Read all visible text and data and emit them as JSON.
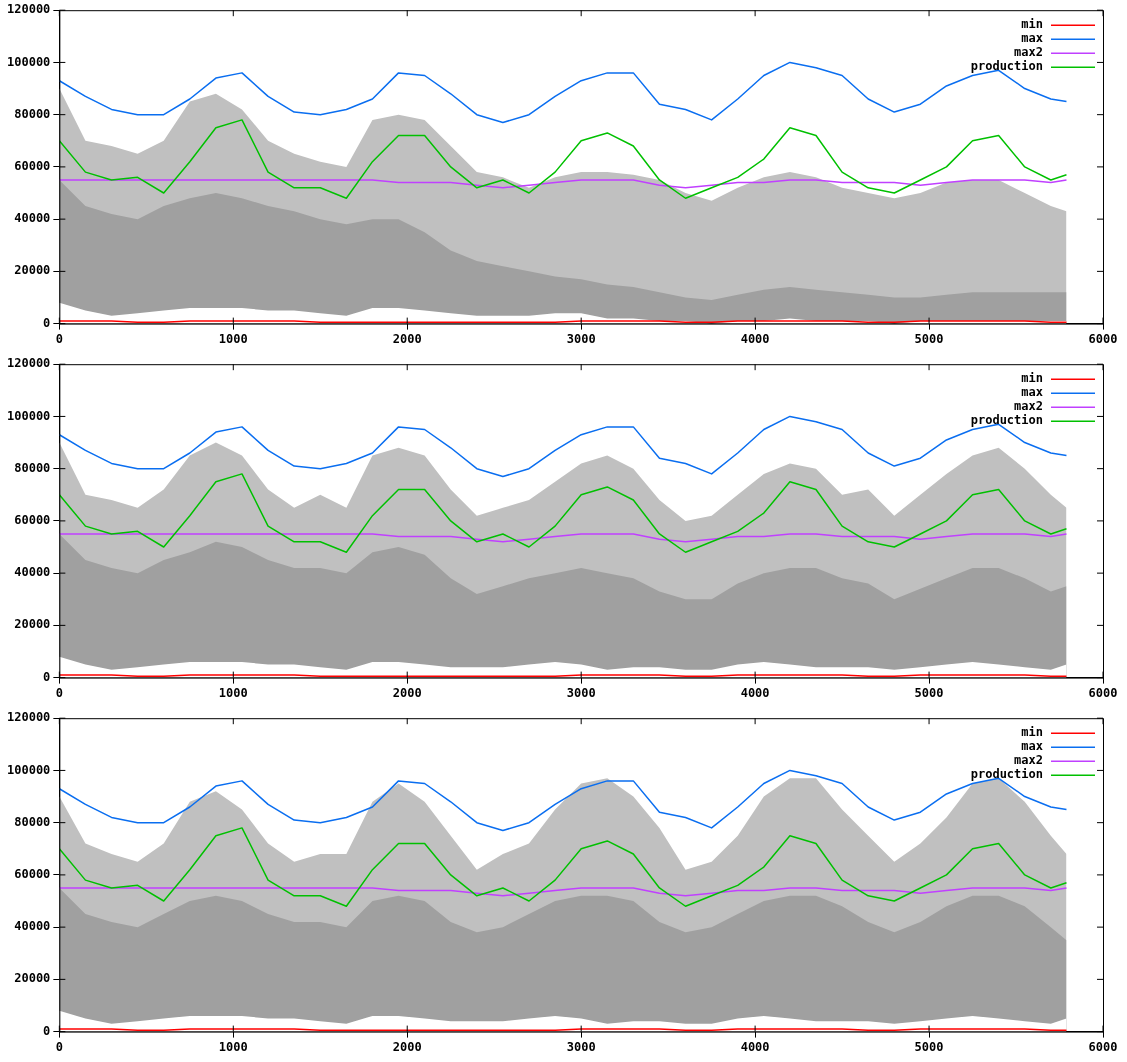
{
  "chart_data": [
    {
      "type": "line",
      "x": [
        0,
        150,
        300,
        450,
        600,
        750,
        900,
        1050,
        1200,
        1350,
        1500,
        1650,
        1800,
        1950,
        2100,
        2250,
        2400,
        2550,
        2700,
        2850,
        3000,
        3150,
        3300,
        3450,
        3600,
        3750,
        3900,
        4050,
        4200,
        4350,
        4500,
        4650,
        4800,
        4950,
        5100,
        5250,
        5400,
        5550,
        5700,
        5790
      ],
      "xlim": [
        0,
        6000
      ],
      "xticks": [
        0,
        1000,
        2000,
        3000,
        4000,
        5000,
        6000
      ],
      "ylim": [
        0,
        120000
      ],
      "yticks": [
        0,
        20000,
        40000,
        60000,
        80000,
        100000,
        120000
      ],
      "grid": false,
      "legend": "top right",
      "marker": "none",
      "series": [
        {
          "type": "area",
          "color": "#c0c0c0",
          "values": [
            90000,
            70000,
            68000,
            65000,
            70000,
            85000,
            88000,
            82000,
            70000,
            65000,
            62000,
            60000,
            78000,
            80000,
            78000,
            68000,
            58000,
            56000,
            52000,
            56000,
            58000,
            58000,
            57000,
            55000,
            50000,
            47000,
            52000,
            56000,
            58000,
            56000,
            52000,
            50000,
            48000,
            50000,
            54000,
            55000,
            55000,
            50000,
            45000,
            43000
          ]
        },
        {
          "type": "area",
          "color": "#a0a0a0",
          "values": [
            55000,
            45000,
            42000,
            40000,
            45000,
            48000,
            50000,
            48000,
            45000,
            43000,
            40000,
            38000,
            40000,
            40000,
            35000,
            28000,
            24000,
            22000,
            20000,
            18000,
            17000,
            15000,
            14000,
            12000,
            10000,
            9000,
            11000,
            13000,
            14000,
            13000,
            12000,
            11000,
            10000,
            10000,
            11000,
            12000,
            12000,
            12000,
            12000,
            12000
          ]
        },
        {
          "type": "area",
          "color": "#ffffff",
          "values": [
            8000,
            5000,
            3000,
            4000,
            5000,
            6000,
            6000,
            6000,
            5000,
            5000,
            4000,
            3000,
            6000,
            6000,
            5000,
            4000,
            3000,
            3000,
            3000,
            4000,
            4000,
            2000,
            2000,
            1000,
            1000,
            0,
            1000,
            1000,
            2000,
            1000,
            1000,
            1000,
            0,
            1000,
            1000,
            1000,
            1000,
            1000,
            1000,
            1000
          ]
        },
        {
          "name": "min",
          "type": "line",
          "color": "#ff0000",
          "values": [
            1000,
            1000,
            1000,
            500,
            500,
            1000,
            1000,
            1000,
            1000,
            1000,
            500,
            500,
            500,
            500,
            500,
            500,
            500,
            500,
            500,
            500,
            1000,
            1000,
            1000,
            1000,
            500,
            500,
            1000,
            1000,
            1000,
            1000,
            1000,
            500,
            500,
            1000,
            1000,
            1000,
            1000,
            1000,
            500,
            500
          ]
        },
        {
          "name": "max",
          "type": "line",
          "color": "#0a6ef0",
          "values": [
            93000,
            87000,
            82000,
            80000,
            80000,
            86000,
            94000,
            96000,
            87000,
            81000,
            80000,
            82000,
            86000,
            96000,
            95000,
            88000,
            80000,
            77000,
            80000,
            87000,
            93000,
            96000,
            96000,
            84000,
            82000,
            78000,
            86000,
            95000,
            100000,
            98000,
            95000,
            86000,
            81000,
            84000,
            91000,
            95000,
            97000,
            90000,
            86000,
            85000
          ]
        },
        {
          "name": "max2",
          "type": "line",
          "color": "#c040ff",
          "values": [
            55000,
            55000,
            55000,
            55000,
            55000,
            55000,
            55000,
            55000,
            55000,
            55000,
            55000,
            55000,
            55000,
            54000,
            54000,
            54000,
            53000,
            52000,
            53000,
            54000,
            55000,
            55000,
            55000,
            53000,
            52000,
            53000,
            54000,
            54000,
            55000,
            55000,
            54000,
            54000,
            54000,
            53000,
            54000,
            55000,
            55000,
            55000,
            54000,
            55000
          ]
        },
        {
          "name": "production",
          "type": "line",
          "color": "#00c000",
          "values": [
            70000,
            58000,
            55000,
            56000,
            50000,
            62000,
            75000,
            78000,
            58000,
            52000,
            52000,
            48000,
            62000,
            72000,
            72000,
            60000,
            52000,
            55000,
            50000,
            58000,
            70000,
            73000,
            68000,
            55000,
            48000,
            52000,
            56000,
            63000,
            75000,
            72000,
            58000,
            52000,
            50000,
            55000,
            60000,
            70000,
            72000,
            60000,
            55000,
            57000
          ]
        }
      ]
    },
    {
      "type": "line",
      "x": [
        0,
        150,
        300,
        450,
        600,
        750,
        900,
        1050,
        1200,
        1350,
        1500,
        1650,
        1800,
        1950,
        2100,
        2250,
        2400,
        2550,
        2700,
        2850,
        3000,
        3150,
        3300,
        3450,
        3600,
        3750,
        3900,
        4050,
        4200,
        4350,
        4500,
        4650,
        4800,
        4950,
        5100,
        5250,
        5400,
        5550,
        5700,
        5790
      ],
      "xlim": [
        0,
        6000
      ],
      "xticks": [
        0,
        1000,
        2000,
        3000,
        4000,
        5000,
        6000
      ],
      "ylim": [
        0,
        120000
      ],
      "yticks": [
        0,
        20000,
        40000,
        60000,
        80000,
        100000,
        120000
      ],
      "grid": false,
      "legend": "top right",
      "marker": "none",
      "series": [
        {
          "type": "area",
          "color": "#c0c0c0",
          "values": [
            90000,
            70000,
            68000,
            65000,
            72000,
            85000,
            90000,
            85000,
            72000,
            65000,
            70000,
            65000,
            85000,
            88000,
            85000,
            72000,
            62000,
            65000,
            68000,
            75000,
            82000,
            85000,
            80000,
            68000,
            60000,
            62000,
            70000,
            78000,
            82000,
            80000,
            70000,
            72000,
            62000,
            70000,
            78000,
            85000,
            88000,
            80000,
            70000,
            65000
          ]
        },
        {
          "type": "area",
          "color": "#a0a0a0",
          "values": [
            55000,
            45000,
            42000,
            40000,
            45000,
            48000,
            52000,
            50000,
            45000,
            42000,
            42000,
            40000,
            48000,
            50000,
            47000,
            38000,
            32000,
            35000,
            38000,
            40000,
            42000,
            40000,
            38000,
            33000,
            30000,
            30000,
            36000,
            40000,
            42000,
            42000,
            38000,
            36000,
            30000,
            34000,
            38000,
            42000,
            42000,
            38000,
            33000,
            35000
          ]
        },
        {
          "type": "area",
          "color": "#ffffff",
          "values": [
            8000,
            5000,
            3000,
            4000,
            5000,
            6000,
            6000,
            6000,
            5000,
            5000,
            4000,
            3000,
            6000,
            6000,
            5000,
            4000,
            4000,
            4000,
            5000,
            6000,
            5000,
            3000,
            4000,
            4000,
            3000,
            3000,
            5000,
            6000,
            5000,
            4000,
            4000,
            4000,
            3000,
            4000,
            5000,
            6000,
            5000,
            4000,
            3000,
            5000
          ]
        },
        {
          "name": "min",
          "type": "line",
          "color": "#ff0000",
          "values": [
            1000,
            1000,
            1000,
            500,
            500,
            1000,
            1000,
            1000,
            1000,
            1000,
            500,
            500,
            500,
            500,
            500,
            500,
            500,
            500,
            500,
            500,
            1000,
            1000,
            1000,
            1000,
            500,
            500,
            1000,
            1000,
            1000,
            1000,
            1000,
            500,
            500,
            1000,
            1000,
            1000,
            1000,
            1000,
            500,
            500
          ]
        },
        {
          "name": "max",
          "type": "line",
          "color": "#0a6ef0",
          "values": [
            93000,
            87000,
            82000,
            80000,
            80000,
            86000,
            94000,
            96000,
            87000,
            81000,
            80000,
            82000,
            86000,
            96000,
            95000,
            88000,
            80000,
            77000,
            80000,
            87000,
            93000,
            96000,
            96000,
            84000,
            82000,
            78000,
            86000,
            95000,
            100000,
            98000,
            95000,
            86000,
            81000,
            84000,
            91000,
            95000,
            97000,
            90000,
            86000,
            85000
          ]
        },
        {
          "name": "max2",
          "type": "line",
          "color": "#c040ff",
          "values": [
            55000,
            55000,
            55000,
            55000,
            55000,
            55000,
            55000,
            55000,
            55000,
            55000,
            55000,
            55000,
            55000,
            54000,
            54000,
            54000,
            53000,
            52000,
            53000,
            54000,
            55000,
            55000,
            55000,
            53000,
            52000,
            53000,
            54000,
            54000,
            55000,
            55000,
            54000,
            54000,
            54000,
            53000,
            54000,
            55000,
            55000,
            55000,
            54000,
            55000
          ]
        },
        {
          "name": "production",
          "type": "line",
          "color": "#00c000",
          "values": [
            70000,
            58000,
            55000,
            56000,
            50000,
            62000,
            75000,
            78000,
            58000,
            52000,
            52000,
            48000,
            62000,
            72000,
            72000,
            60000,
            52000,
            55000,
            50000,
            58000,
            70000,
            73000,
            68000,
            55000,
            48000,
            52000,
            56000,
            63000,
            75000,
            72000,
            58000,
            52000,
            50000,
            55000,
            60000,
            70000,
            72000,
            60000,
            55000,
            57000
          ]
        }
      ]
    },
    {
      "type": "line",
      "x": [
        0,
        150,
        300,
        450,
        600,
        750,
        900,
        1050,
        1200,
        1350,
        1500,
        1650,
        1800,
        1950,
        2100,
        2250,
        2400,
        2550,
        2700,
        2850,
        3000,
        3150,
        3300,
        3450,
        3600,
        3750,
        3900,
        4050,
        4200,
        4350,
        4500,
        4650,
        4800,
        4950,
        5100,
        5250,
        5400,
        5550,
        5700,
        5790
      ],
      "xlim": [
        0,
        6000
      ],
      "xticks": [
        0,
        1000,
        2000,
        3000,
        4000,
        5000,
        6000
      ],
      "ylim": [
        0,
        120000
      ],
      "yticks": [
        0,
        20000,
        40000,
        60000,
        80000,
        100000,
        120000
      ],
      "grid": false,
      "legend": "top right",
      "marker": "none",
      "series": [
        {
          "type": "area",
          "color": "#c0c0c0",
          "values": [
            90000,
            72000,
            68000,
            65000,
            72000,
            88000,
            92000,
            85000,
            72000,
            65000,
            68000,
            68000,
            88000,
            95000,
            88000,
            75000,
            62000,
            68000,
            72000,
            85000,
            95000,
            97000,
            90000,
            78000,
            62000,
            65000,
            75000,
            90000,
            97000,
            97000,
            85000,
            75000,
            65000,
            72000,
            82000,
            95000,
            97000,
            88000,
            75000,
            68000
          ]
        },
        {
          "type": "area",
          "color": "#a0a0a0",
          "values": [
            55000,
            45000,
            42000,
            40000,
            45000,
            50000,
            52000,
            50000,
            45000,
            42000,
            42000,
            40000,
            50000,
            52000,
            50000,
            42000,
            38000,
            40000,
            45000,
            50000,
            52000,
            52000,
            50000,
            42000,
            38000,
            40000,
            45000,
            50000,
            52000,
            52000,
            48000,
            42000,
            38000,
            42000,
            48000,
            52000,
            52000,
            48000,
            40000,
            35000
          ]
        },
        {
          "type": "area",
          "color": "#ffffff",
          "values": [
            8000,
            5000,
            3000,
            4000,
            5000,
            6000,
            6000,
            6000,
            5000,
            5000,
            4000,
            3000,
            6000,
            6000,
            5000,
            4000,
            4000,
            4000,
            5000,
            6000,
            5000,
            3000,
            4000,
            4000,
            3000,
            3000,
            5000,
            6000,
            5000,
            4000,
            4000,
            4000,
            3000,
            4000,
            5000,
            6000,
            5000,
            4000,
            3000,
            5000
          ]
        },
        {
          "name": "min",
          "type": "line",
          "color": "#ff0000",
          "values": [
            1000,
            1000,
            1000,
            500,
            500,
            1000,
            1000,
            1000,
            1000,
            1000,
            500,
            500,
            500,
            500,
            500,
            500,
            500,
            500,
            500,
            500,
            1000,
            1000,
            1000,
            1000,
            500,
            500,
            1000,
            1000,
            1000,
            1000,
            1000,
            500,
            500,
            1000,
            1000,
            1000,
            1000,
            1000,
            500,
            500
          ]
        },
        {
          "name": "max",
          "type": "line",
          "color": "#0a6ef0",
          "values": [
            93000,
            87000,
            82000,
            80000,
            80000,
            86000,
            94000,
            96000,
            87000,
            81000,
            80000,
            82000,
            86000,
            96000,
            95000,
            88000,
            80000,
            77000,
            80000,
            87000,
            93000,
            96000,
            96000,
            84000,
            82000,
            78000,
            86000,
            95000,
            100000,
            98000,
            95000,
            86000,
            81000,
            84000,
            91000,
            95000,
            97000,
            90000,
            86000,
            85000
          ]
        },
        {
          "name": "max2",
          "type": "line",
          "color": "#c040ff",
          "values": [
            55000,
            55000,
            55000,
            55000,
            55000,
            55000,
            55000,
            55000,
            55000,
            55000,
            55000,
            55000,
            55000,
            54000,
            54000,
            54000,
            53000,
            52000,
            53000,
            54000,
            55000,
            55000,
            55000,
            53000,
            52000,
            53000,
            54000,
            54000,
            55000,
            55000,
            54000,
            54000,
            54000,
            53000,
            54000,
            55000,
            55000,
            55000,
            54000,
            55000
          ]
        },
        {
          "name": "production",
          "type": "line",
          "color": "#00c000",
          "values": [
            70000,
            58000,
            55000,
            56000,
            50000,
            62000,
            75000,
            78000,
            58000,
            52000,
            52000,
            48000,
            62000,
            72000,
            72000,
            60000,
            52000,
            55000,
            50000,
            58000,
            70000,
            73000,
            68000,
            55000,
            48000,
            52000,
            56000,
            63000,
            75000,
            72000,
            58000,
            52000,
            50000,
            55000,
            60000,
            70000,
            72000,
            60000,
            55000,
            57000
          ]
        }
      ]
    }
  ]
}
